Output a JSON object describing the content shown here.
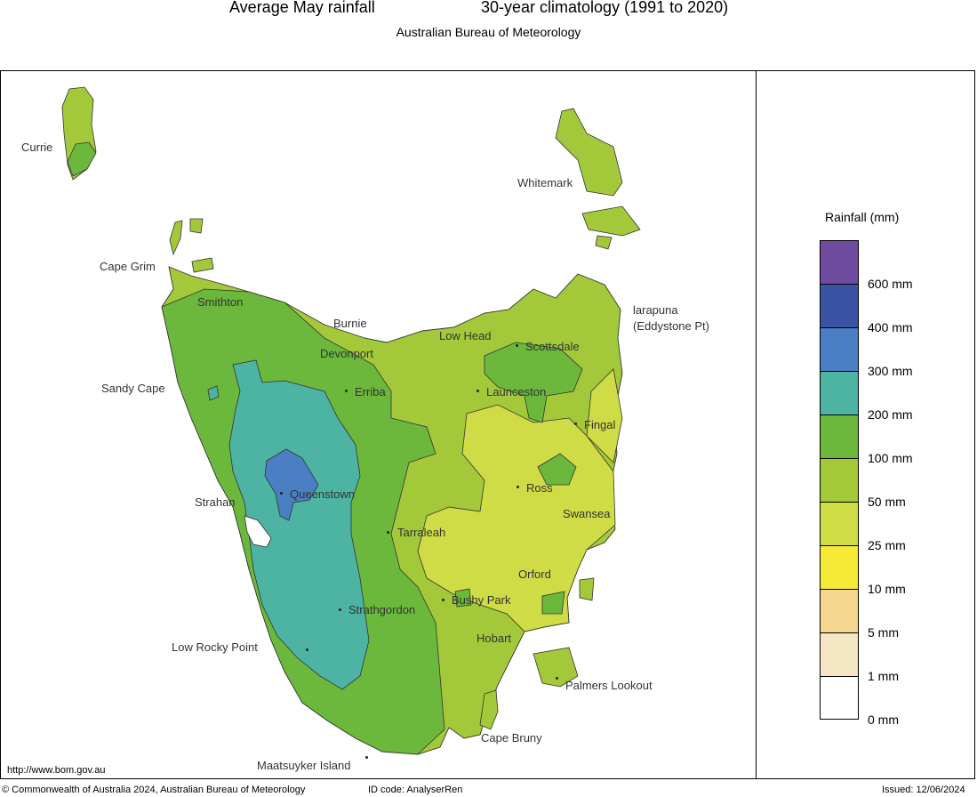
{
  "header": {
    "title_left": "Average May rainfall",
    "title_right": "30-year climatology (1991 to 2020)",
    "subtitle": "Australian Bureau of Meteorology"
  },
  "map": {
    "region": "Tasmania",
    "places": {
      "currie": "Currie",
      "whitemark": "Whitemark",
      "cape_grim": "Cape Grim",
      "smithton": "Smithton",
      "burnie": "Burnie",
      "larapuna": "larapuna",
      "eddystone": "(Eddystone Pt)",
      "low_head": "Low Head",
      "scottsdale": "Scottsdale",
      "devonport": "Devonport",
      "sandy_cape": "Sandy Cape",
      "erriba": "Erriba",
      "launceston": "Launceston",
      "fingal": "Fingal",
      "queenstown": "Queenstown",
      "ross": "Ross",
      "strahan": "Strahan",
      "swansea": "Swansea",
      "tarraleah": "Tarraleah",
      "orford": "Orford",
      "bushy_park": "Bushy Park",
      "strathgordon": "Strathgordon",
      "low_rocky_point": "Low Rocky Point",
      "hobart": "Hobart",
      "palmers_lookout": "Palmers Lookout",
      "cape_bruny": "Cape Bruny",
      "maatsuyker": "Maatsuyker Island"
    }
  },
  "legend": {
    "title": "Rainfall (mm)",
    "bands": [
      {
        "color": "#6e4b9e"
      },
      {
        "color": "#3a53a4",
        "label": "600 mm"
      },
      {
        "color": "#4a7fc4",
        "label": "400 mm"
      },
      {
        "color": "#4db3a2",
        "label": "300 mm"
      },
      {
        "color": "#6bb83c",
        "label": "200 mm"
      },
      {
        "color": "#a3c93a",
        "label": "100 mm"
      },
      {
        "color": "#cfdc45",
        "label": "50 mm"
      },
      {
        "color": "#f5ea35",
        "label": "25 mm"
      },
      {
        "color": "#f4d68f",
        "label": "10 mm"
      },
      {
        "color": "#f5e7c4",
        "label": "5 mm"
      },
      {
        "color": "#ffffff",
        "label": "1 mm"
      }
    ],
    "bottom_label": "0 mm"
  },
  "footer": {
    "url": "http://www.bom.gov.au",
    "copyright": "© Commonwealth of Australia 2024, Australian Bureau of Meteorology",
    "id_code": "ID code: AnalyserRen",
    "issued": "Issued: 12/06/2024"
  }
}
